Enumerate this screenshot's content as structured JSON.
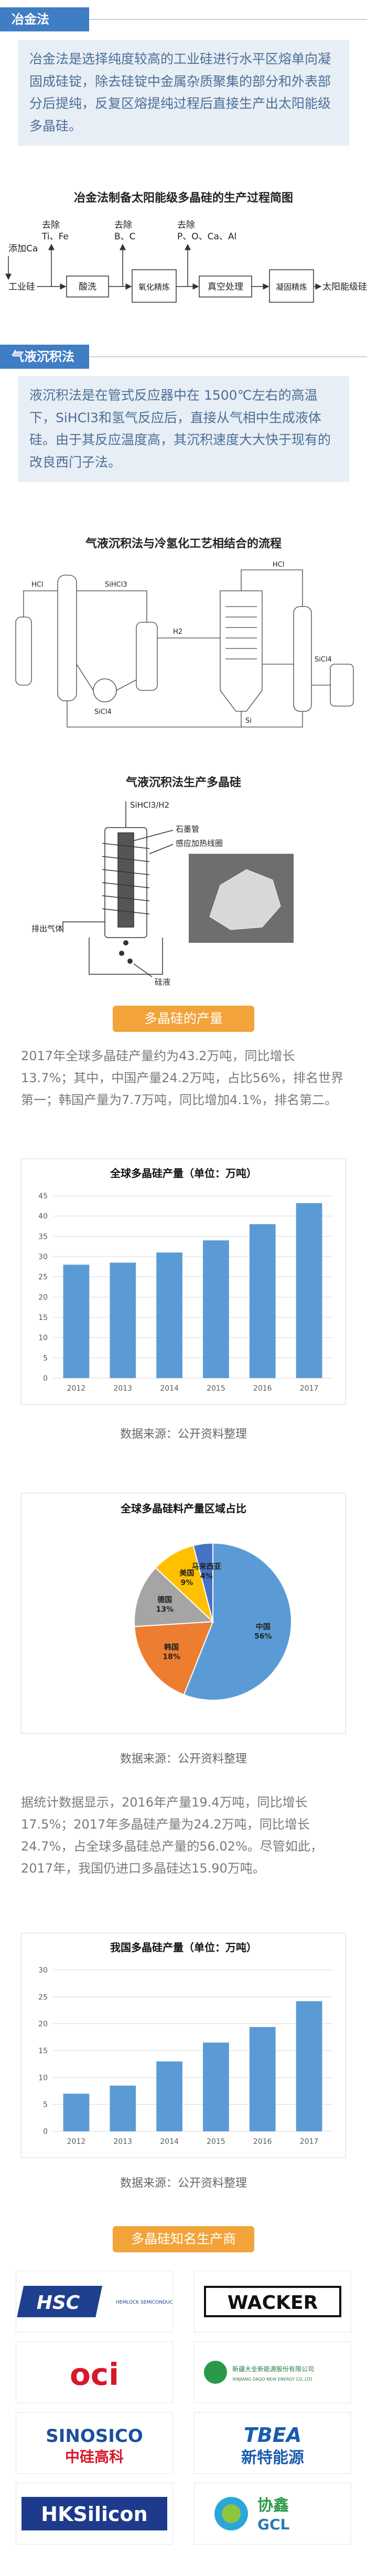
{
  "metallurgy": {
    "heading": "冶金法",
    "text": "冶金法是选择纯度较高的工业硅进行水平区熔单向凝固成硅锭，除去硅锭中金属杂质聚集的部分和外表部分后提纯，反复区熔提纯过程后直接生产出太阳能级多晶硅。",
    "diagram_title": "冶金法制备太阳能级多晶硅的生产过程简图",
    "diagram": {
      "additive": "添加Ca",
      "input": "工业硅",
      "steps": [
        "酸洗",
        "氧化精炼",
        "真空处理",
        "凝固精炼"
      ],
      "output": "太阳能级硅",
      "removals": [
        {
          "verb": "去除",
          "items": "Ti、Fe"
        },
        {
          "verb": "去除",
          "items": "B、C"
        },
        {
          "verb": "去除",
          "items": "P、O、Ca、Al"
        }
      ]
    }
  },
  "vld": {
    "heading": "气液沉积法",
    "text": "液沉积法是在管式反应器中在 1500℃左右的高温下，SiHCl3和氢气反应后，直接从气相中生成液体硅。由于其反应温度高，其沉积速度大大快于现有的改良西门子法。",
    "process_title": "气液沉积法与冷氢化工艺相结合的流程",
    "process_labels": [
      "HCl",
      "SiHCl3",
      "SiCl4",
      "H2",
      "Si",
      "SiCl4",
      "HCl"
    ],
    "reactor_title": "气液沉积法生产多晶硅",
    "reactor_labels": [
      "SiHCl3/H2",
      "石墨管",
      "感应加热线圈",
      "排出气体",
      "硅液"
    ]
  },
  "output_tab": "多晶硅的产量",
  "output_text": "2017年全球多晶硅产量约为43.2万吨，同比增长13.7%；其中，中国产量24.2万吨，占比56%，排名世界第一；韩国产量为7.7万吨，同比增加4.1%，排名第二。",
  "china_text": "据统计数据显示，2016年产量19.4万吨，同比增长17.5%；2017年多晶硅产量为24.2万吨，同比增长24.7%，占全球多晶硅总产量的56.02%。尽管如此，2017年，我国仍进口多晶硅达15.90万吨。",
  "chart_data": [
    {
      "type": "bar",
      "title": "全球多晶硅产量（单位：万吨）",
      "categories": [
        "2012",
        "2013",
        "2014",
        "2015",
        "2016",
        "2017"
      ],
      "values": [
        28,
        28.5,
        31,
        34,
        38,
        43.2
      ],
      "color": "#5b9bd5",
      "ylim": [
        0,
        45
      ],
      "yticks": [
        0,
        5,
        10,
        15,
        20,
        25,
        30,
        35,
        40,
        45
      ],
      "grid": true,
      "source": "数据来源：公开资料整理"
    },
    {
      "type": "pie",
      "title": "全球多晶硅料产量区域占比",
      "categories": [
        "中国",
        "韩国",
        "德国",
        "美国",
        "马来西亚"
      ],
      "values": [
        56,
        18,
        13,
        9,
        4
      ],
      "value_labels": [
        "56%",
        "18%",
        "13%",
        "9%",
        "4%"
      ],
      "colors": [
        "#5b9bd5",
        "#ed7d31",
        "#a5a5a5",
        "#ffc000",
        "#4472c4"
      ],
      "source": "数据来源：公开资料整理"
    },
    {
      "type": "bar",
      "title": "我国多晶硅产量（单位：万吨）",
      "categories": [
        "2012",
        "2013",
        "2014",
        "2015",
        "2016",
        "2017"
      ],
      "values": [
        7,
        8.5,
        13,
        16.5,
        19.4,
        24.2
      ],
      "color": "#5b9bd5",
      "ylim": [
        0,
        30
      ],
      "yticks": [
        0,
        5,
        10,
        15,
        20,
        25,
        30
      ],
      "grid": true,
      "source": "数据来源：公开资料整理"
    }
  ],
  "producers_tab": "多晶硅知名生产商",
  "producers": [
    {
      "name": "HSC",
      "sub": "HEMLOCK SEMICONDUCTOR"
    },
    {
      "name": "WACKER"
    },
    {
      "name": "oci"
    },
    {
      "name": "新疆大全新能源股份有限公司",
      "sub": "XINJIANG DAQO NEW ENERGY CO.,LTD"
    },
    {
      "name": "SINOSICO",
      "sub": "中硅高科"
    },
    {
      "name": "TBEA",
      "sub": "新特能源"
    },
    {
      "name": "HKSilicon"
    },
    {
      "name": "协鑫",
      "sub": "GCL"
    }
  ]
}
